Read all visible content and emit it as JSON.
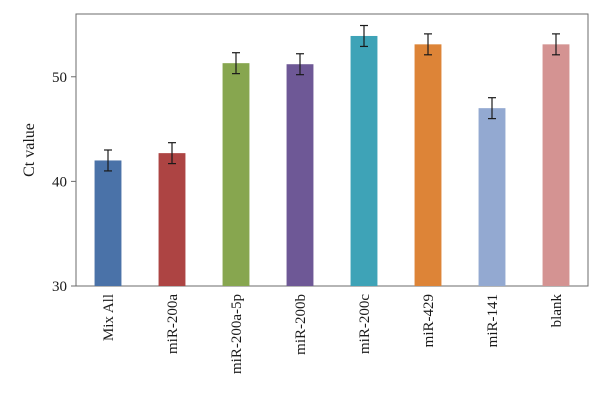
{
  "chart_data": {
    "type": "bar",
    "title": "",
    "xlabel": "",
    "ylabel": "Ct value",
    "ylim": [
      30,
      56
    ],
    "yticks": [
      30,
      40,
      50
    ],
    "grid": false,
    "legend": "none",
    "categories": [
      "Mix All",
      "miR-200a",
      "miR-200a-5p",
      "miR-200b",
      "miR-200c",
      "miR-429",
      "miR-141",
      "blank"
    ],
    "values": [
      42.0,
      42.7,
      51.3,
      51.2,
      53.9,
      53.1,
      47.0,
      53.1
    ],
    "errors": [
      1.0,
      1.0,
      1.0,
      1.0,
      1.0,
      1.0,
      1.0,
      1.0
    ],
    "colors": [
      "#4a72a8",
      "#ad4443",
      "#87a64f",
      "#6e5896",
      "#3ea3b7",
      "#dd8437",
      "#93a9d1",
      "#d49392"
    ]
  }
}
